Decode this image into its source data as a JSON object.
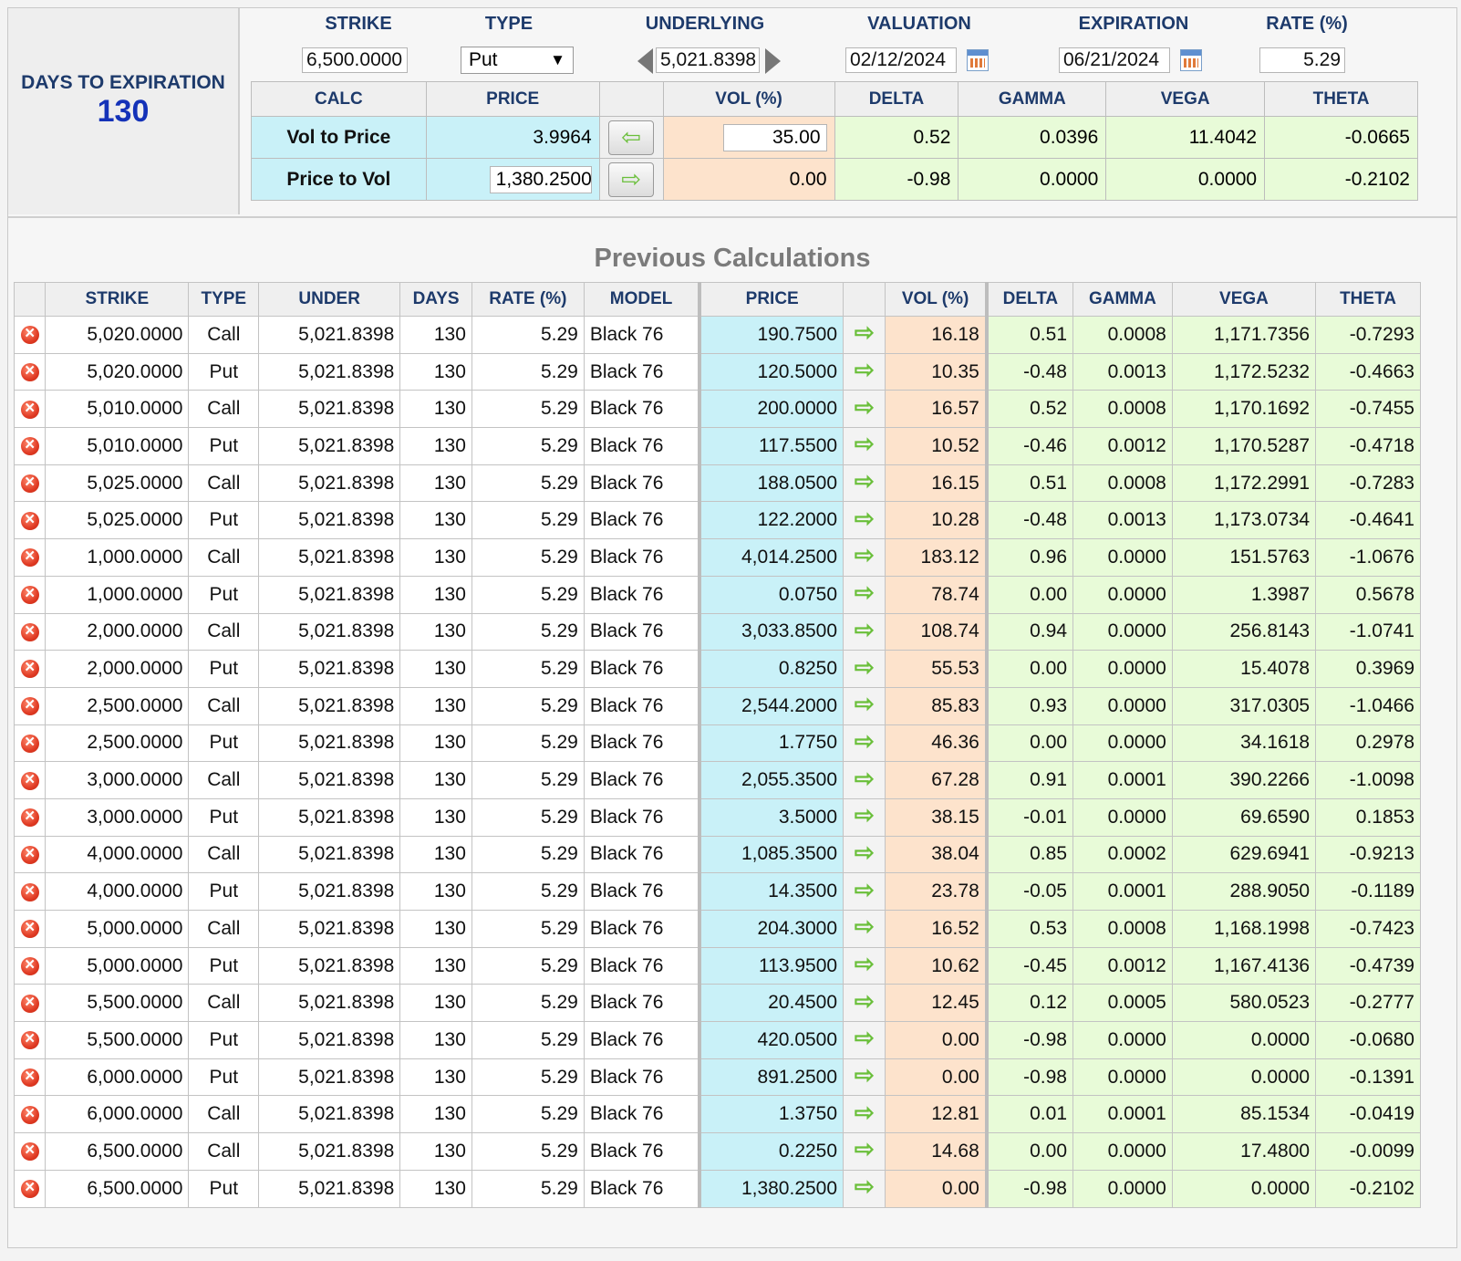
{
  "days": {
    "label": "DAYS TO EXPIRATION",
    "value": "130"
  },
  "inputs": {
    "headers": {
      "strike": "STRIKE",
      "type": "TYPE",
      "underlying": "UNDERLYING",
      "valuation": "VALUATION",
      "expiration": "EXPIRATION",
      "rate": "RATE (%)"
    },
    "strike": "6,500.0000",
    "type": "Put",
    "underlying": "5,021.8398",
    "valuation": "02/12/2024",
    "expiration": "06/21/2024",
    "rate": "5.29"
  },
  "calc": {
    "headers": {
      "calc": "CALC",
      "price": "PRICE",
      "vol": "VOL (%)",
      "delta": "DELTA",
      "gamma": "GAMMA",
      "vega": "VEGA",
      "theta": "THETA"
    },
    "rows": [
      {
        "name": "Vol to Price",
        "price": "3.9964",
        "vol": "35.00",
        "delta": "0.52",
        "gamma": "0.0396",
        "vega": "11.4042",
        "theta": "-0.0665"
      },
      {
        "name": "Price to Vol",
        "price": "1,380.2500",
        "vol": "0.00",
        "delta": "-0.98",
        "gamma": "0.0000",
        "vega": "0.0000",
        "theta": "-0.2102"
      }
    ]
  },
  "previous": {
    "title": "Previous Calculations",
    "headers": {
      "strike": "STRIKE",
      "type": "TYPE",
      "under": "UNDER",
      "days": "DAYS",
      "rate": "RATE (%)",
      "model": "MODEL",
      "price": "PRICE",
      "vol": "VOL (%)",
      "delta": "DELTA",
      "gamma": "GAMMA",
      "vega": "VEGA",
      "theta": "THETA"
    },
    "rows": [
      [
        "5,020.0000",
        "Call",
        "5,021.8398",
        "130",
        "5.29",
        "Black 76",
        "190.7500",
        "16.18",
        "0.51",
        "0.0008",
        "1,171.7356",
        "-0.7293"
      ],
      [
        "5,020.0000",
        "Put",
        "5,021.8398",
        "130",
        "5.29",
        "Black 76",
        "120.5000",
        "10.35",
        "-0.48",
        "0.0013",
        "1,172.5232",
        "-0.4663"
      ],
      [
        "5,010.0000",
        "Call",
        "5,021.8398",
        "130",
        "5.29",
        "Black 76",
        "200.0000",
        "16.57",
        "0.52",
        "0.0008",
        "1,170.1692",
        "-0.7455"
      ],
      [
        "5,010.0000",
        "Put",
        "5,021.8398",
        "130",
        "5.29",
        "Black 76",
        "117.5500",
        "10.52",
        "-0.46",
        "0.0012",
        "1,170.5287",
        "-0.4718"
      ],
      [
        "5,025.0000",
        "Call",
        "5,021.8398",
        "130",
        "5.29",
        "Black 76",
        "188.0500",
        "16.15",
        "0.51",
        "0.0008",
        "1,172.2991",
        "-0.7283"
      ],
      [
        "5,025.0000",
        "Put",
        "5,021.8398",
        "130",
        "5.29",
        "Black 76",
        "122.2000",
        "10.28",
        "-0.48",
        "0.0013",
        "1,173.0734",
        "-0.4641"
      ],
      [
        "1,000.0000",
        "Call",
        "5,021.8398",
        "130",
        "5.29",
        "Black 76",
        "4,014.2500",
        "183.12",
        "0.96",
        "0.0000",
        "151.5763",
        "-1.0676"
      ],
      [
        "1,000.0000",
        "Put",
        "5,021.8398",
        "130",
        "5.29",
        "Black 76",
        "0.0750",
        "78.74",
        "0.00",
        "0.0000",
        "1.3987",
        "0.5678"
      ],
      [
        "2,000.0000",
        "Call",
        "5,021.8398",
        "130",
        "5.29",
        "Black 76",
        "3,033.8500",
        "108.74",
        "0.94",
        "0.0000",
        "256.8143",
        "-1.0741"
      ],
      [
        "2,000.0000",
        "Put",
        "5,021.8398",
        "130",
        "5.29",
        "Black 76",
        "0.8250",
        "55.53",
        "0.00",
        "0.0000",
        "15.4078",
        "0.3969"
      ],
      [
        "2,500.0000",
        "Call",
        "5,021.8398",
        "130",
        "5.29",
        "Black 76",
        "2,544.2000",
        "85.83",
        "0.93",
        "0.0000",
        "317.0305",
        "-1.0466"
      ],
      [
        "2,500.0000",
        "Put",
        "5,021.8398",
        "130",
        "5.29",
        "Black 76",
        "1.7750",
        "46.36",
        "0.00",
        "0.0000",
        "34.1618",
        "0.2978"
      ],
      [
        "3,000.0000",
        "Call",
        "5,021.8398",
        "130",
        "5.29",
        "Black 76",
        "2,055.3500",
        "67.28",
        "0.91",
        "0.0001",
        "390.2266",
        "-1.0098"
      ],
      [
        "3,000.0000",
        "Put",
        "5,021.8398",
        "130",
        "5.29",
        "Black 76",
        "3.5000",
        "38.15",
        "-0.01",
        "0.0000",
        "69.6590",
        "0.1853"
      ],
      [
        "4,000.0000",
        "Call",
        "5,021.8398",
        "130",
        "5.29",
        "Black 76",
        "1,085.3500",
        "38.04",
        "0.85",
        "0.0002",
        "629.6941",
        "-0.9213"
      ],
      [
        "4,000.0000",
        "Put",
        "5,021.8398",
        "130",
        "5.29",
        "Black 76",
        "14.3500",
        "23.78",
        "-0.05",
        "0.0001",
        "288.9050",
        "-0.1189"
      ],
      [
        "5,000.0000",
        "Call",
        "5,021.8398",
        "130",
        "5.29",
        "Black 76",
        "204.3000",
        "16.52",
        "0.53",
        "0.0008",
        "1,168.1998",
        "-0.7423"
      ],
      [
        "5,000.0000",
        "Put",
        "5,021.8398",
        "130",
        "5.29",
        "Black 76",
        "113.9500",
        "10.62",
        "-0.45",
        "0.0012",
        "1,167.4136",
        "-0.4739"
      ],
      [
        "5,500.0000",
        "Call",
        "5,021.8398",
        "130",
        "5.29",
        "Black 76",
        "20.4500",
        "12.45",
        "0.12",
        "0.0005",
        "580.0523",
        "-0.2777"
      ],
      [
        "5,500.0000",
        "Put",
        "5,021.8398",
        "130",
        "5.29",
        "Black 76",
        "420.0500",
        "0.00",
        "-0.98",
        "0.0000",
        "0.0000",
        "-0.0680"
      ],
      [
        "6,000.0000",
        "Put",
        "5,021.8398",
        "130",
        "5.29",
        "Black 76",
        "891.2500",
        "0.00",
        "-0.98",
        "0.0000",
        "0.0000",
        "-0.1391"
      ],
      [
        "6,000.0000",
        "Call",
        "5,021.8398",
        "130",
        "5.29",
        "Black 76",
        "1.3750",
        "12.81",
        "0.01",
        "0.0001",
        "85.1534",
        "-0.0419"
      ],
      [
        "6,500.0000",
        "Call",
        "5,021.8398",
        "130",
        "5.29",
        "Black 76",
        "0.2250",
        "14.68",
        "0.00",
        "0.0000",
        "17.4800",
        "-0.0099"
      ],
      [
        "6,500.0000",
        "Put",
        "5,021.8398",
        "130",
        "5.29",
        "Black 76",
        "1,380.2500",
        "0.00",
        "-0.98",
        "0.0000",
        "0.0000",
        "-0.2102"
      ]
    ]
  }
}
